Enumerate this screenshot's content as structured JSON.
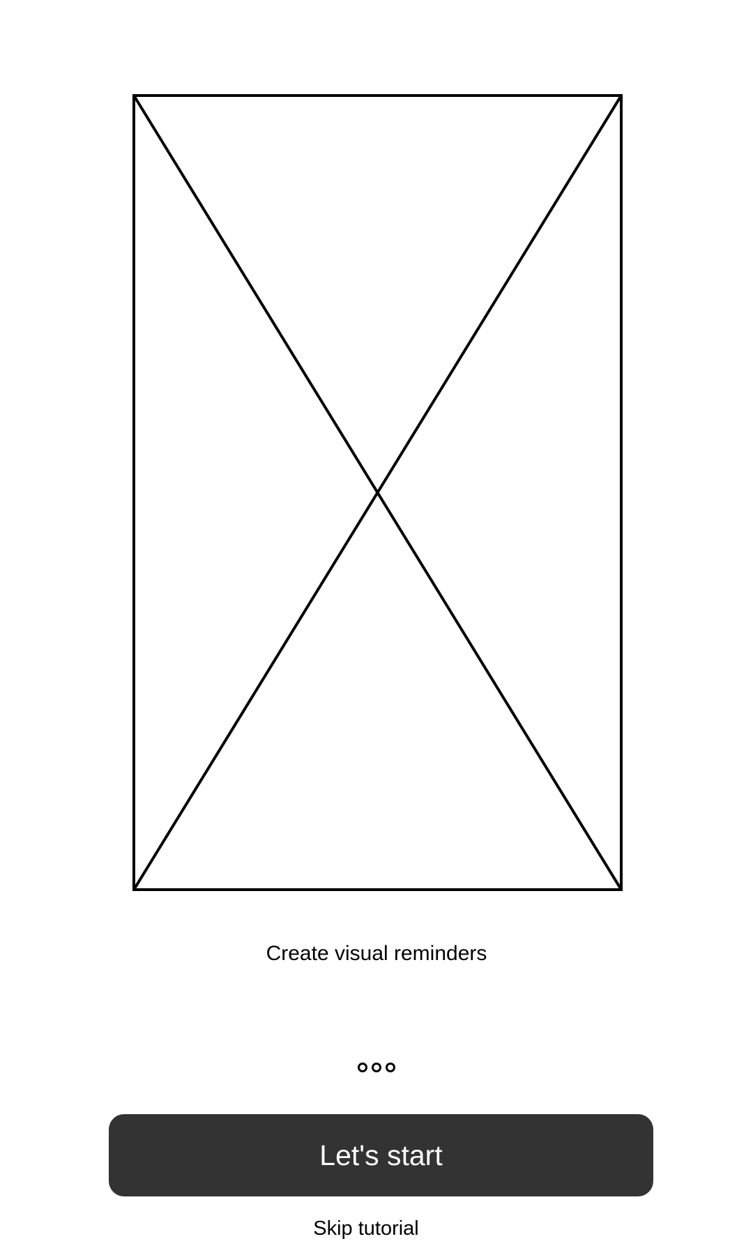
{
  "onboarding": {
    "caption": "Create visual reminders",
    "pager": {
      "page_count": 3,
      "current_page": 1
    },
    "primary_button_label": "Let's start",
    "skip_label": "Skip tutorial"
  },
  "colors": {
    "background": "#ffffff",
    "button": "#333333",
    "button_text": "#ffffff",
    "stroke": "#000000"
  },
  "icons": {
    "placeholder": "image-placeholder-icon",
    "pager_dot": "circle-outline"
  }
}
